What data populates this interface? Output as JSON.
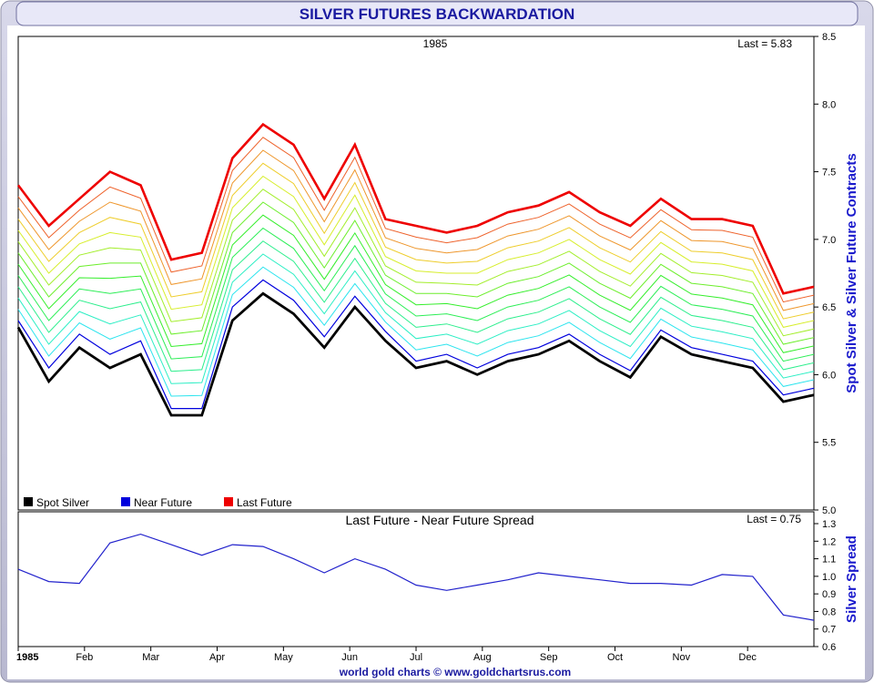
{
  "header": {
    "title": "SILVER FUTURES BACKWARDATION",
    "footer": "world gold charts © www.goldchartsrus.com"
  },
  "colors": {
    "title_text": "#1a1aa0",
    "spot": "#000000",
    "near": "#0000dd",
    "last": "#ee0000",
    "spread": "#2222cc",
    "axis_label": "#1a1acc"
  },
  "chart_data": [
    {
      "type": "line",
      "title": "1985",
      "last_label": "Last = 5.83",
      "ylabel": "Spot Silver & Silver Future Contracts",
      "ylim": [
        5.0,
        8.5
      ],
      "yticks": [
        "8.5",
        "8.0",
        "7.5",
        "7.0",
        "6.5",
        "6.0",
        "5.5",
        "5.0"
      ],
      "x": [
        "Jan",
        "Jan",
        "Jan",
        "Feb",
        "Feb",
        "Mar",
        "Mar",
        "Mar",
        "Apr",
        "Apr",
        "May",
        "May",
        "May",
        "Jun",
        "Jun",
        "Jul",
        "Jul",
        "Aug",
        "Aug",
        "Sep",
        "Sep",
        "Oct",
        "Oct",
        "Nov",
        "Nov",
        "Dec",
        "Dec"
      ],
      "legend": [
        "Spot Silver",
        "Near Future",
        "Last Future"
      ],
      "series": [
        {
          "name": "Spot Silver",
          "values": [
            6.35,
            5.95,
            6.2,
            6.05,
            6.15,
            5.7,
            5.7,
            6.4,
            6.6,
            6.45,
            6.2,
            6.5,
            6.25,
            6.05,
            6.1,
            6.0,
            6.1,
            6.15,
            6.25,
            6.1,
            5.98,
            6.28,
            6.15,
            6.1,
            6.05,
            5.8,
            5.85
          ]
        },
        {
          "name": "Near Future",
          "values": [
            6.4,
            6.05,
            6.3,
            6.15,
            6.25,
            5.75,
            5.75,
            6.5,
            6.7,
            6.55,
            6.28,
            6.58,
            6.32,
            6.1,
            6.15,
            6.05,
            6.15,
            6.2,
            6.3,
            6.15,
            6.03,
            6.33,
            6.2,
            6.15,
            6.1,
            5.85,
            5.9
          ]
        },
        {
          "name": "Last Future",
          "values": [
            7.4,
            7.1,
            7.3,
            7.5,
            7.4,
            6.85,
            6.9,
            7.6,
            7.85,
            7.7,
            7.3,
            7.7,
            7.15,
            7.1,
            7.05,
            7.1,
            7.2,
            7.25,
            7.35,
            7.2,
            7.1,
            7.3,
            7.15,
            7.15,
            7.1,
            6.6,
            6.65
          ]
        }
      ]
    },
    {
      "type": "line",
      "title": "Last Future - Near Future Spread",
      "last_label": "Last = 0.75",
      "ylabel": "Silver Spread",
      "ylim": [
        0.6,
        1.3
      ],
      "yticks": [
        "1.3",
        "1.2",
        "1.1",
        "1.0",
        "0.9",
        "0.8",
        "0.7",
        "0.6"
      ],
      "x": [
        "Jan",
        "Jan",
        "Jan",
        "Feb",
        "Feb",
        "Mar",
        "Mar",
        "Mar",
        "Apr",
        "Apr",
        "May",
        "May",
        "May",
        "Jun",
        "Jun",
        "Jul",
        "Jul",
        "Aug",
        "Aug",
        "Sep",
        "Sep",
        "Oct",
        "Oct",
        "Nov",
        "Nov",
        "Dec",
        "Dec"
      ],
      "xticks": [
        "1985",
        "Feb",
        "Mar",
        "Apr",
        "May",
        "Jun",
        "Jul",
        "Aug",
        "Sep",
        "Oct",
        "Nov",
        "Dec"
      ],
      "series": [
        {
          "name": "",
          "values": [
            1.04,
            0.97,
            0.96,
            1.19,
            1.24,
            1.18,
            1.12,
            1.18,
            1.17,
            1.1,
            1.02,
            1.1,
            1.04,
            0.95,
            0.92,
            0.95,
            0.98,
            1.02,
            1.0,
            0.98,
            0.96,
            0.96,
            0.95,
            1.01,
            1.0,
            0.78,
            0.75
          ]
        }
      ]
    }
  ]
}
